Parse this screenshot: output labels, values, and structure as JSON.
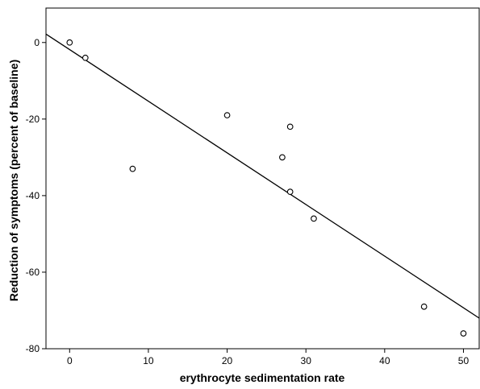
{
  "chart_data": {
    "type": "scatter",
    "xlabel": "erythrocyte sedimentation rate",
    "ylabel": "Reduction of symptoms (percent of baseline)",
    "xlim": [
      -3,
      52
    ],
    "ylim": [
      -80,
      9
    ],
    "xticks": [
      0,
      10,
      20,
      30,
      40,
      50
    ],
    "yticks": [
      0,
      -20,
      -40,
      -60,
      -80
    ],
    "grid": false,
    "points": [
      {
        "x": 0,
        "y": 0
      },
      {
        "x": 2,
        "y": -4
      },
      {
        "x": 8,
        "y": -33
      },
      {
        "x": 20,
        "y": -19
      },
      {
        "x": 27,
        "y": -30
      },
      {
        "x": 28,
        "y": -22
      },
      {
        "x": 28,
        "y": -39
      },
      {
        "x": 31,
        "y": -46
      },
      {
        "x": 45,
        "y": -69
      },
      {
        "x": 50,
        "y": -76
      }
    ],
    "fit_line": {
      "x1": -3,
      "y1": 2.2,
      "x2": 52,
      "y2": -72
    }
  }
}
